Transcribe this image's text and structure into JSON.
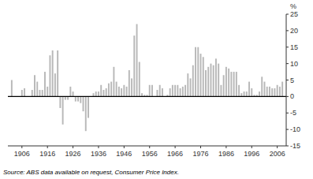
{
  "chart_data": {
    "type": "bar",
    "ylabel": "%",
    "annotations": [
      "Source: ABS data available on request, Consumer Price Index."
    ],
    "x": [
      1902,
      1903,
      1904,
      1905,
      1906,
      1907,
      1908,
      1909,
      1910,
      1911,
      1912,
      1913,
      1914,
      1915,
      1916,
      1917,
      1918,
      1919,
      1920,
      1921,
      1922,
      1923,
      1924,
      1925,
      1926,
      1927,
      1928,
      1929,
      1930,
      1931,
      1932,
      1933,
      1934,
      1935,
      1936,
      1937,
      1938,
      1939,
      1940,
      1941,
      1942,
      1943,
      1944,
      1945,
      1946,
      1947,
      1948,
      1949,
      1950,
      1951,
      1952,
      1953,
      1954,
      1955,
      1956,
      1957,
      1958,
      1959,
      1960,
      1961,
      1962,
      1963,
      1964,
      1965,
      1966,
      1967,
      1968,
      1969,
      1970,
      1971,
      1972,
      1973,
      1974,
      1975,
      1976,
      1977,
      1978,
      1979,
      1980,
      1981,
      1982,
      1983,
      1984,
      1985,
      1986,
      1987,
      1988,
      1989,
      1990,
      1991,
      1992,
      1993,
      1994,
      1995,
      1996,
      1997,
      1998,
      1999,
      2000,
      2001,
      2002,
      2003,
      2004,
      2005,
      2006,
      2007,
      2008
    ],
    "values": [
      5.0,
      0.0,
      0.0,
      0.0,
      2.0,
      2.5,
      0.0,
      0.0,
      2.0,
      6.5,
      4.5,
      2.0,
      2.0,
      7.5,
      3.0,
      12.5,
      14.0,
      7.0,
      14.0,
      -3.5,
      -8.5,
      -1.0,
      -1.0,
      3.0,
      1.5,
      -1.5,
      -1.5,
      -2.0,
      -4.5,
      -10.5,
      -6.5,
      0.0,
      1.0,
      1.5,
      1.5,
      3.5,
      2.0,
      2.5,
      4.0,
      4.5,
      9.0,
      4.5,
      3.0,
      2.5,
      3.5,
      3.0,
      8.0,
      5.5,
      18.5,
      22.0,
      10.5,
      1.0,
      0.5,
      0.5,
      3.5,
      3.5,
      0.0,
      2.0,
      3.5,
      2.5,
      0.0,
      0.5,
      2.5,
      3.5,
      3.5,
      3.5,
      2.5,
      3.0,
      3.5,
      7.0,
      5.5,
      9.5,
      15.0,
      15.0,
      13.0,
      12.0,
      8.0,
      9.0,
      10.0,
      9.5,
      11.5,
      10.0,
      3.5,
      6.5,
      9.0,
      8.5,
      7.5,
      7.5,
      7.5,
      3.5,
      1.0,
      1.5,
      1.5,
      4.5,
      2.5,
      0.5,
      0.5,
      1.5,
      6.0,
      4.5,
      3.0,
      3.0,
      2.5,
      2.5,
      3.5,
      3.0,
      4.5
    ],
    "color": "#b8b8b8",
    "xlim": [
      1900.5,
      2009.5
    ],
    "xticks": [
      1906,
      1916,
      1926,
      1936,
      1946,
      1956,
      1966,
      1976,
      1986,
      1996,
      2006
    ],
    "ylim": [
      -15,
      25
    ],
    "yticks": [
      -15,
      -10,
      -5,
      0,
      5,
      10,
      15,
      20,
      25
    ],
    "grid": false
  }
}
